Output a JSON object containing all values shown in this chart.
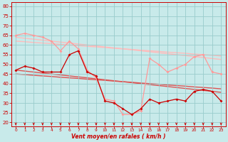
{
  "x": [
    0,
    1,
    2,
    3,
    4,
    5,
    6,
    7,
    8,
    9,
    10,
    11,
    12,
    13,
    14,
    15,
    16,
    17,
    18,
    19,
    20,
    21,
    22,
    23
  ],
  "line_rafales": [
    65,
    66,
    65,
    64,
    62,
    57,
    62,
    58,
    47,
    43,
    32,
    31,
    24,
    24,
    26,
    53,
    50,
    46,
    48,
    50,
    54,
    55,
    46,
    45
  ],
  "line_moyen": [
    47,
    49,
    48,
    46,
    46,
    46,
    55,
    57,
    46,
    44,
    31,
    30,
    27,
    24,
    27,
    32,
    30,
    31,
    32,
    31,
    36,
    37,
    36,
    31
  ],
  "line_trend1": [
    64,
    63.5,
    63,
    62.5,
    62,
    61.5,
    61,
    60.5,
    60,
    59.5,
    59,
    58.5,
    58,
    57.5,
    57,
    56.5,
    56,
    55.5,
    55,
    54.5,
    54,
    53.5,
    53,
    52.5
  ],
  "line_trend2": [
    62,
    61.7,
    61.3,
    61.0,
    60.7,
    60.3,
    60.0,
    59.7,
    59.3,
    59.0,
    58.7,
    58.3,
    58.0,
    57.7,
    57.3,
    57.0,
    56.7,
    56.3,
    56.0,
    55.7,
    55.3,
    55.0,
    54.7,
    54.3
  ],
  "line_trend3": [
    47,
    46.5,
    46,
    45.5,
    45,
    44.5,
    44,
    43.5,
    43,
    42.5,
    42,
    41.5,
    41,
    40.5,
    40,
    39.5,
    39,
    38.5,
    38,
    37.5,
    37,
    36.5,
    36,
    35.5
  ],
  "line_trend4": [
    45,
    44.7,
    44.3,
    44.0,
    43.7,
    43.3,
    43.0,
    42.7,
    42.3,
    42.0,
    41.7,
    41.3,
    41.0,
    40.7,
    40.3,
    40.0,
    39.7,
    39.3,
    39.0,
    38.7,
    38.3,
    38.0,
    37.7,
    37.3
  ],
  "color_rafales": "#ff9999",
  "color_moyen": "#cc0000",
  "color_trend_light": "#ffbbbb",
  "color_trend_dark": "#dd5555",
  "bgcolor": "#c8eaea",
  "grid_color": "#99cccc",
  "xlabel": "Vent moyen/en rafales ( km/h )",
  "xlabel_color": "#cc0000",
  "tick_color": "#cc0000",
  "ylim": [
    18,
    82
  ],
  "xlim": [
    -0.5,
    23.5
  ],
  "yticks": [
    20,
    25,
    30,
    35,
    40,
    45,
    50,
    55,
    60,
    65,
    70,
    75,
    80
  ],
  "xticks": [
    0,
    1,
    2,
    3,
    4,
    5,
    6,
    7,
    8,
    9,
    10,
    11,
    12,
    13,
    14,
    15,
    16,
    17,
    18,
    19,
    20,
    21,
    22,
    23
  ]
}
